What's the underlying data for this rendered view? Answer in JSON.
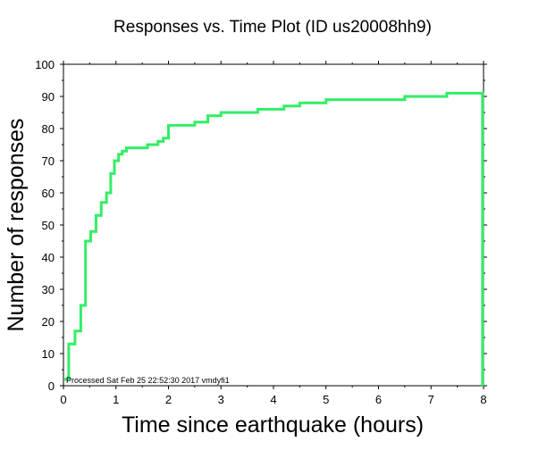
{
  "chart_data": {
    "type": "line",
    "title": "Responses vs. Time Plot (ID us20008hh9)",
    "xlabel": "Time since earthquake (hours)",
    "ylabel": "Number of responses",
    "xlim": [
      0,
      8
    ],
    "ylim": [
      0,
      100
    ],
    "xticks": [
      "0",
      "1",
      "2",
      "3",
      "4",
      "5",
      "6",
      "7",
      "8"
    ],
    "yticks": [
      "0",
      "10",
      "20",
      "30",
      "40",
      "50",
      "60",
      "70",
      "80",
      "90",
      "100"
    ],
    "grid": false,
    "legend": "none",
    "annotation": "Processed Sat Feb 25 22:52:30 2017 vmdyfi1",
    "line_color": "#33ee66",
    "series": [
      {
        "step": "post",
        "x": [
          0.02,
          0.1,
          0.22,
          0.33,
          0.42,
          0.52,
          0.62,
          0.72,
          0.82,
          0.9,
          0.97,
          1.05,
          1.12,
          1.2,
          1.3,
          1.6,
          1.8,
          1.9,
          2.0,
          2.5,
          2.75,
          3.0,
          3.7,
          4.2,
          4.5,
          5.0,
          6.5,
          7.3,
          7.98
        ],
        "y": [
          2,
          13,
          17,
          25,
          45,
          48,
          53,
          57,
          60,
          66,
          70,
          72,
          73,
          74,
          74,
          75,
          76,
          77,
          81,
          82,
          84,
          85,
          86,
          87,
          88,
          89,
          90,
          91,
          0
        ]
      }
    ]
  }
}
